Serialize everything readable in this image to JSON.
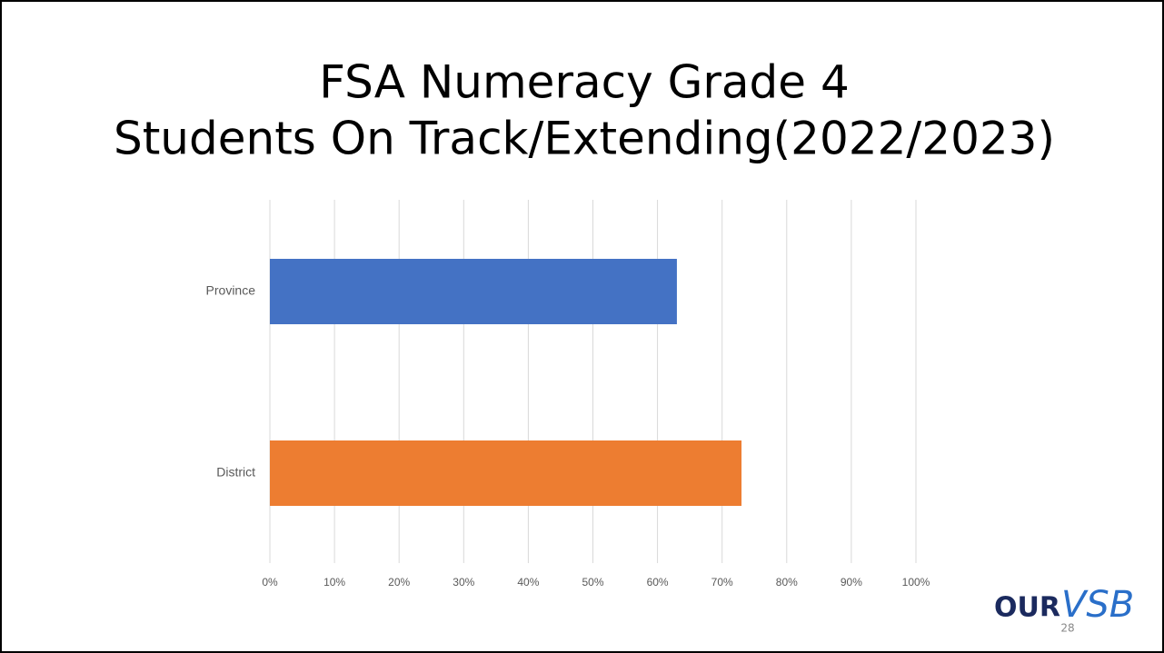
{
  "chart_data": {
    "type": "barh",
    "title": [
      "FSA Numeracy Grade 4",
      "Students On Track/Extending(2022/2023)"
    ],
    "categories": [
      "Province",
      "District"
    ],
    "values": [
      63,
      73
    ],
    "colors": [
      "#4472c4",
      "#ed7d31"
    ],
    "xlim": [
      0,
      100
    ],
    "xticks": [
      {
        "value": 0,
        "label": "0%"
      },
      {
        "value": 10,
        "label": "10%"
      },
      {
        "value": 20,
        "label": "20%"
      },
      {
        "value": 30,
        "label": "30%"
      },
      {
        "value": 40,
        "label": "40%"
      },
      {
        "value": 50,
        "label": "50%"
      },
      {
        "value": 60,
        "label": "60%"
      },
      {
        "value": 70,
        "label": "70%"
      },
      {
        "value": 80,
        "label": "80%"
      },
      {
        "value": 90,
        "label": "90%"
      },
      {
        "value": 100,
        "label": "100%"
      }
    ],
    "grid": true
  },
  "footer": {
    "logo": [
      "OUR",
      "VSB"
    ],
    "page_number": "28"
  }
}
